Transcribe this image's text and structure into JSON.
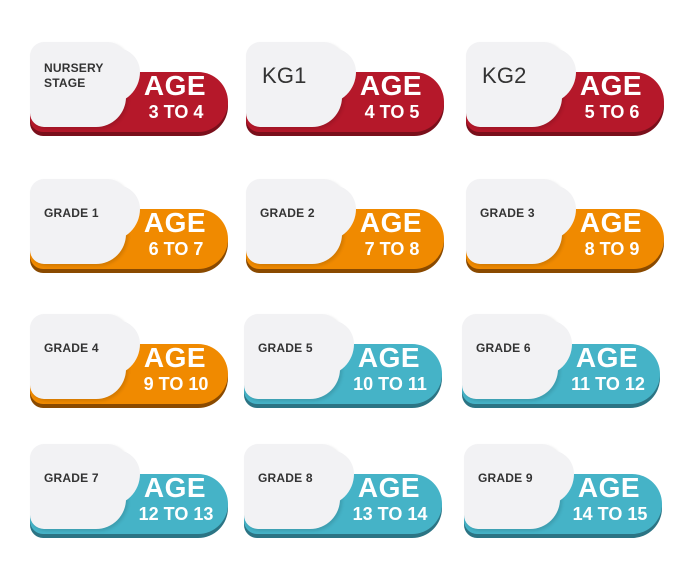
{
  "badges": [
    {
      "grade": "NURSERY STAGE",
      "age": "AGE",
      "range": "3 TO 4",
      "color": "#b5182a"
    },
    {
      "grade": "KG1",
      "age": "AGE",
      "range": "4 TO 5",
      "color": "#b5182a"
    },
    {
      "grade": "KG2",
      "age": "AGE",
      "range": "5 TO 6",
      "color": "#b5182a"
    },
    {
      "grade": "GRADE 1",
      "age": "AGE",
      "range": "6 TO 7",
      "color": "#f08a00"
    },
    {
      "grade": "GRADE 2",
      "age": "AGE",
      "range": "7 TO 8",
      "color": "#f08a00"
    },
    {
      "grade": "GRADE 3",
      "age": "AGE",
      "range": "8 TO 9",
      "color": "#f08a00"
    },
    {
      "grade": "GRADE 4",
      "age": "AGE",
      "range": "9 TO 10",
      "color": "#f08a00"
    },
    {
      "grade": "GRADE 5",
      "age": "AGE",
      "range": "10 TO 11",
      "color": "#45b3c7"
    },
    {
      "grade": "GRADE 6",
      "age": "AGE",
      "range": "11 TO 12",
      "color": "#45b3c7"
    },
    {
      "grade": "GRADE 7",
      "age": "AGE",
      "range": "12 TO 13",
      "color": "#45b3c7"
    },
    {
      "grade": "GRADE 8",
      "age": "AGE",
      "range": "13 TO 14",
      "color": "#45b3c7"
    },
    {
      "grade": "GRADE 9",
      "age": "AGE",
      "range": "14 TO 15",
      "color": "#45b3c7"
    }
  ]
}
